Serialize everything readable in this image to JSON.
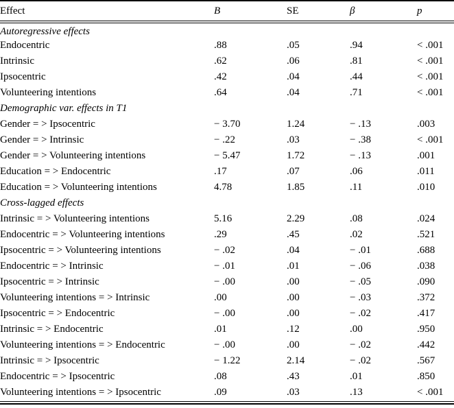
{
  "table": {
    "headers": {
      "effect": "Effect",
      "B": "B",
      "SE": "SE",
      "beta": "β",
      "p": "p"
    },
    "sections": [
      {
        "title": "Autoregressive effects",
        "rows": [
          {
            "effect": "Endocentric",
            "B": ".88",
            "SE": ".05",
            "beta": ".94",
            "p": "< .001"
          },
          {
            "effect": "Intrinsic",
            "B": ".62",
            "SE": ".06",
            "beta": ".81",
            "p": "< .001"
          },
          {
            "effect": "Ipsocentric",
            "B": ".42",
            "SE": ".04",
            "beta": ".44",
            "p": "< .001"
          },
          {
            "effect": "Volunteering intentions",
            "B": ".64",
            "SE": ".04",
            "beta": ".71",
            "p": "< .001"
          }
        ]
      },
      {
        "title": "Demographic var. effects in T1",
        "rows": [
          {
            "effect": "Gender = > Ipsocentric",
            "B": "− 3.70",
            "SE": "1.24",
            "beta": "− .13",
            "p": ".003"
          },
          {
            "effect": "Gender = > Intrinsic",
            "B": "− .22",
            "SE": ".03",
            "beta": "− .38",
            "p": "< .001"
          },
          {
            "effect": "Gender = > Volunteering intentions",
            "B": "− 5.47",
            "SE": "1.72",
            "beta": "− .13",
            "p": ".001"
          },
          {
            "effect": "Education = > Endocentric",
            "B": ".17",
            "SE": ".07",
            "beta": ".06",
            "p": ".011"
          },
          {
            "effect": "Education = > Volunteering intentions",
            "B": "4.78",
            "SE": "1.85",
            "beta": ".11",
            "p": ".010"
          }
        ]
      },
      {
        "title": "Cross-lagged effects",
        "rows": [
          {
            "effect": "Intrinsic = > Volunteering intentions",
            "B": "5.16",
            "SE": "2.29",
            "beta": ".08",
            "p": ".024"
          },
          {
            "effect": "Endocentric = > Volunteering intentions",
            "B": ".29",
            "SE": ".45",
            "beta": ".02",
            "p": ".521"
          },
          {
            "effect": "Ipsocentric = > Volunteering intentions",
            "B": "− .02",
            "SE": ".04",
            "beta": "− .01",
            "p": ".688"
          },
          {
            "effect": "Endocentric = > Intrinsic",
            "B": "− .01",
            "SE": ".01",
            "beta": "− .06",
            "p": ".038"
          },
          {
            "effect": "Ipsocentric = > Intrinsic",
            "B": "− .00",
            "SE": ".00",
            "beta": "− .05",
            "p": ".090"
          },
          {
            "effect": "Volunteering intentions = > Intrinsic",
            "B": ".00",
            "SE": ".00",
            "beta": "− .03",
            "p": ".372"
          },
          {
            "effect": "Ipsocentric = > Endocentric",
            "B": "− .00",
            "SE": ".00",
            "beta": "− .02",
            "p": ".417"
          },
          {
            "effect": "Intrinsic = > Endocentric",
            "B": ".01",
            "SE": ".12",
            "beta": ".00",
            "p": ".950"
          },
          {
            "effect": "Volunteering intentions = > Endocentric",
            "B": "− .00",
            "SE": ".00",
            "beta": "− .02",
            "p": ".442"
          },
          {
            "effect": "Intrinsic = > Ipsocentric",
            "B": "− 1.22",
            "SE": "2.14",
            "beta": "− .02",
            "p": ".567"
          },
          {
            "effect": "Endocentric = > Ipsocentric",
            "B": ".08",
            "SE": ".43",
            "beta": ".01",
            "p": ".850"
          },
          {
            "effect": "Volunteering intentions = > Ipsocentric",
            "B": ".09",
            "SE": ".03",
            "beta": ".13",
            "p": "< .001"
          }
        ]
      }
    ]
  }
}
